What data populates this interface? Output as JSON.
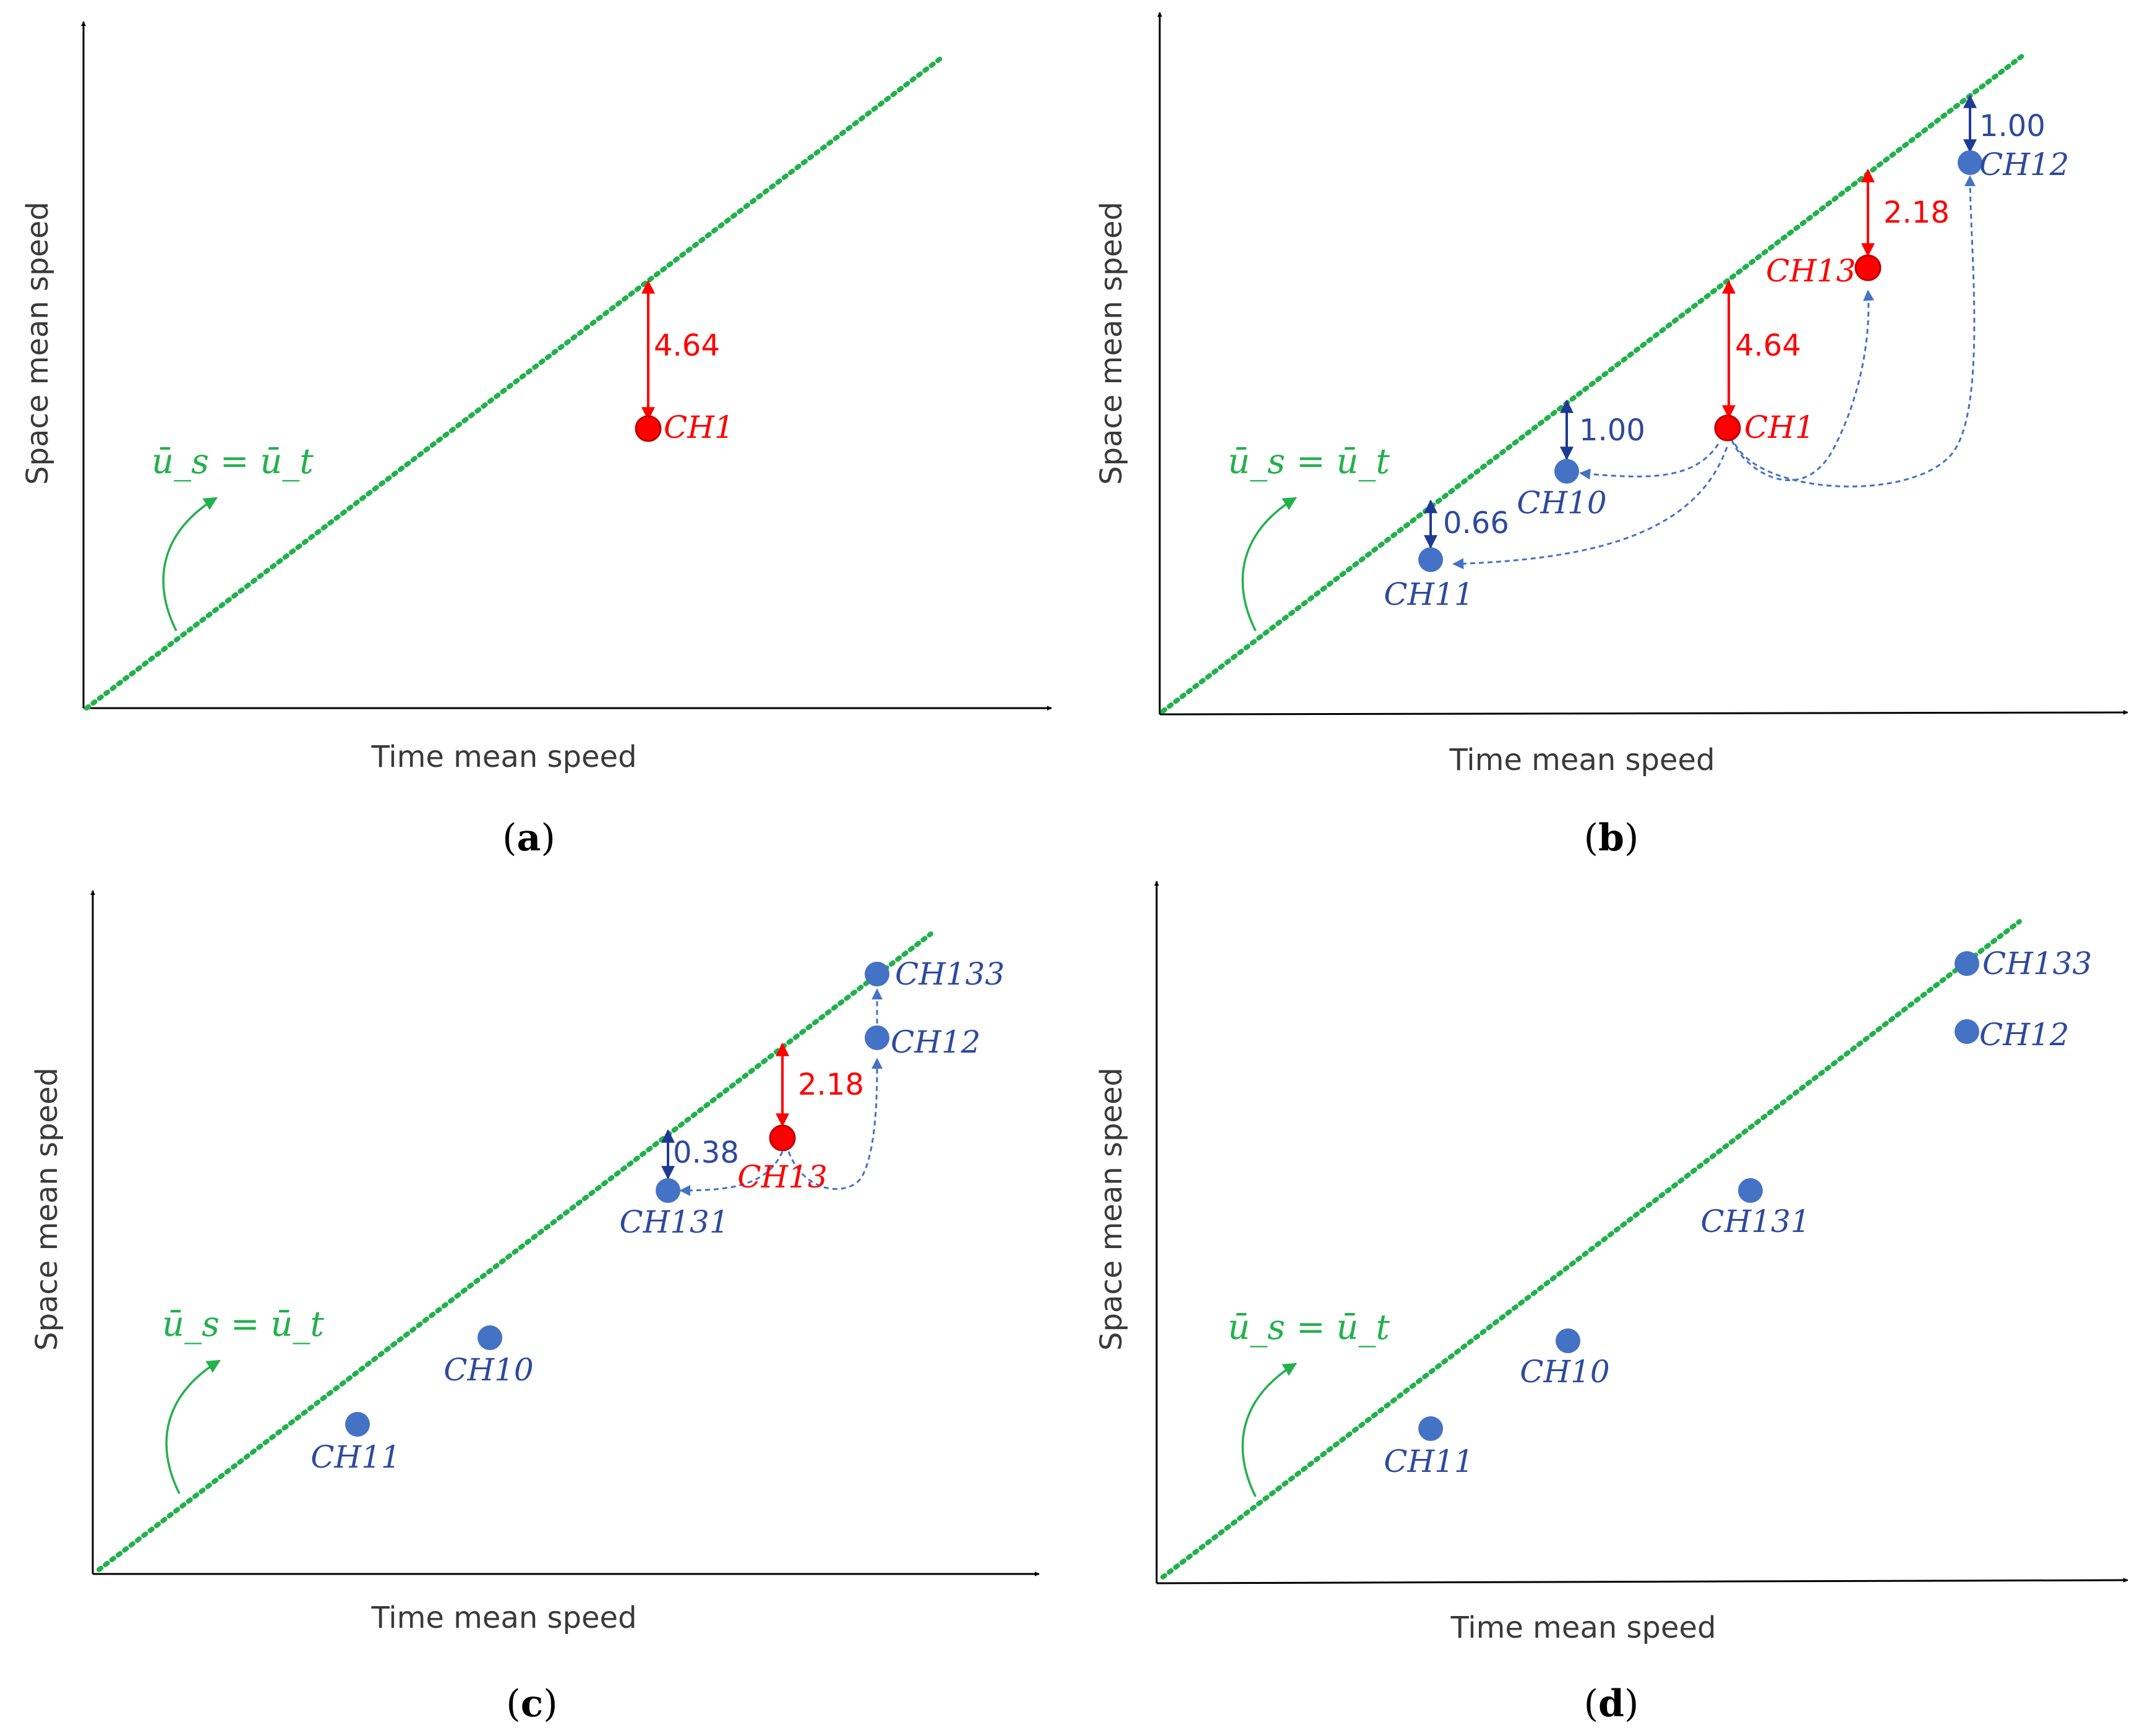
{
  "colors": {
    "identity_line": "#22b14c",
    "red": "#ff0000",
    "blue": "#4472c4",
    "dark_blue": "#1f3a93",
    "label_blue": "#2e4a9e",
    "axis": "#000000"
  },
  "axes": {
    "x_title": "Time mean speed",
    "y_title": "Space mean speed"
  },
  "equation": "ū_s = ū_t",
  "panels": [
    {
      "label": "(a)",
      "letter": "a",
      "points": [
        {
          "name": "CH1",
          "color": "red"
        }
      ],
      "gaps": [
        {
          "value": "4.64",
          "color": "red"
        }
      ]
    },
    {
      "label": "(b)",
      "letter": "b",
      "points": [
        {
          "name": "CH1",
          "color": "red"
        },
        {
          "name": "CH13",
          "color": "red"
        },
        {
          "name": "CH12",
          "color": "blue"
        },
        {
          "name": "CH10",
          "color": "blue"
        },
        {
          "name": "CH11",
          "color": "blue"
        }
      ],
      "gaps": [
        {
          "value": "4.64",
          "color": "red"
        },
        {
          "value": "2.18",
          "color": "red"
        },
        {
          "value": "1.00",
          "color": "blue"
        },
        {
          "value": "1.00",
          "color": "blue"
        },
        {
          "value": "0.66",
          "color": "blue"
        }
      ]
    },
    {
      "label": "(c)",
      "letter": "c",
      "points": [
        {
          "name": "CH133",
          "color": "blue"
        },
        {
          "name": "CH12",
          "color": "blue"
        },
        {
          "name": "CH13",
          "color": "red"
        },
        {
          "name": "CH131",
          "color": "blue"
        },
        {
          "name": "CH10",
          "color": "blue"
        },
        {
          "name": "CH11",
          "color": "blue"
        }
      ],
      "gaps": [
        {
          "value": "2.18",
          "color": "red"
        },
        {
          "value": "0.38",
          "color": "blue"
        }
      ]
    },
    {
      "label": "(d)",
      "letter": "d",
      "points": [
        {
          "name": "CH133",
          "color": "blue"
        },
        {
          "name": "CH12",
          "color": "blue"
        },
        {
          "name": "CH131",
          "color": "blue"
        },
        {
          "name": "CH10",
          "color": "blue"
        },
        {
          "name": "CH11",
          "color": "blue"
        }
      ],
      "gaps": []
    }
  ]
}
